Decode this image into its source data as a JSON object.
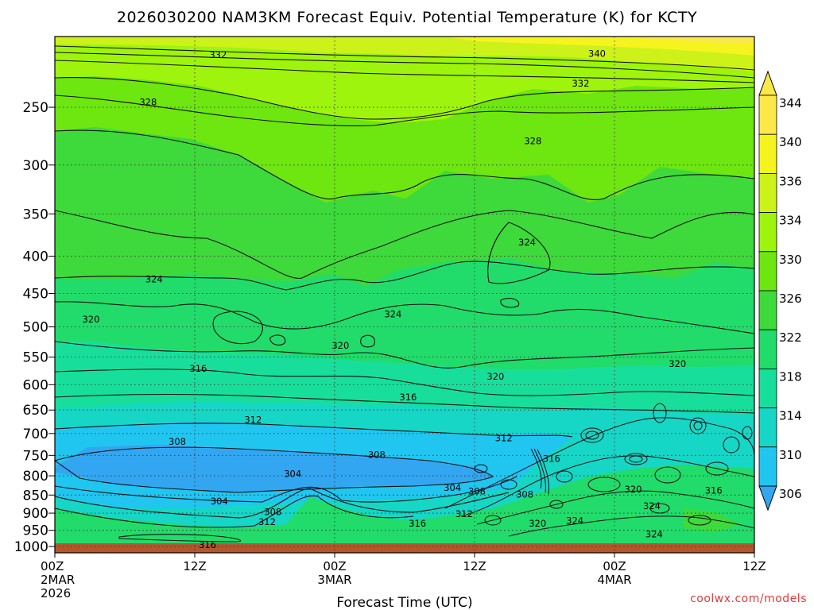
{
  "chart_data": {
    "type": "heatmap",
    "title": "2026030200 NAM3KM Forecast Equiv. Potential Temperature (K) for KCTY",
    "xlabel": "Forecast Time (UTC)",
    "ylabel": "",
    "x_ticks": [
      {
        "hour": 0,
        "lines": [
          "00Z",
          "2MAR",
          "2026"
        ]
      },
      {
        "hour": 12,
        "lines": [
          "12Z"
        ]
      },
      {
        "hour": 24,
        "lines": [
          "00Z",
          "3MAR"
        ]
      },
      {
        "hour": 36,
        "lines": [
          "12Z"
        ]
      },
      {
        "hour": 48,
        "lines": [
          "00Z",
          "4MAR"
        ]
      },
      {
        "hour": 60,
        "lines": [
          "12Z"
        ]
      }
    ],
    "xlim": [
      0,
      60
    ],
    "ylim": [
      1020,
      200
    ],
    "y_ticks": [
      250,
      300,
      350,
      400,
      450,
      500,
      550,
      600,
      650,
      700,
      750,
      800,
      850,
      900,
      950,
      1000
    ],
    "y_scale": "log-pressure",
    "grid": true,
    "colorbar": {
      "ticks": [
        344,
        340,
        336,
        334,
        330,
        326,
        322,
        318,
        314,
        310,
        306
      ],
      "colors": [
        "#fde84a",
        "#f6f41e",
        "#cdf21a",
        "#9ef40c",
        "#6ee610",
        "#3ed93a",
        "#21dc6a",
        "#18de9c",
        "#16d6c6",
        "#20c6f0",
        "#33a6f1"
      ]
    },
    "surface_color": "#b5552c",
    "contour_labels": [
      {
        "text": "332",
        "hour": 14,
        "p": 212
      },
      {
        "text": "340",
        "hour": 46.5,
        "p": 211
      },
      {
        "text": "332",
        "hour": 45.1,
        "p": 232
      },
      {
        "text": "328",
        "hour": 8,
        "p": 246
      },
      {
        "text": "328",
        "hour": 41,
        "p": 278
      },
      {
        "text": "324",
        "hour": 40.5,
        "p": 383
      },
      {
        "text": "324",
        "hour": 8.5,
        "p": 430
      },
      {
        "text": "324",
        "hour": 29,
        "p": 480
      },
      {
        "text": "320",
        "hour": 3.1,
        "p": 488
      },
      {
        "text": "320",
        "hour": 24.5,
        "p": 530
      },
      {
        "text": "320",
        "hour": 37.8,
        "p": 585
      },
      {
        "text": "320",
        "hour": 53.4,
        "p": 562
      },
      {
        "text": "316",
        "hour": 12.3,
        "p": 570
      },
      {
        "text": "316",
        "hour": 30.3,
        "p": 624
      },
      {
        "text": "312",
        "hour": 17,
        "p": 670
      },
      {
        "text": "312",
        "hour": 38.5,
        "p": 710
      },
      {
        "text": "308",
        "hour": 10.5,
        "p": 718
      },
      {
        "text": "308",
        "hour": 27.6,
        "p": 748
      },
      {
        "text": "316",
        "hour": 42.6,
        "p": 758
      },
      {
        "text": "304",
        "hour": 20.4,
        "p": 795
      },
      {
        "text": "304",
        "hour": 34.1,
        "p": 830
      },
      {
        "text": "308",
        "hour": 36.2,
        "p": 840
      },
      {
        "text": "308",
        "hour": 40.3,
        "p": 848
      },
      {
        "text": "320",
        "hour": 49.6,
        "p": 835
      },
      {
        "text": "316",
        "hour": 56.5,
        "p": 838
      },
      {
        "text": "304",
        "hour": 14.1,
        "p": 867
      },
      {
        "text": "324",
        "hour": 51.2,
        "p": 880
      },
      {
        "text": "308",
        "hour": 18.7,
        "p": 897
      },
      {
        "text": "312",
        "hour": 35.1,
        "p": 902
      },
      {
        "text": "312",
        "hour": 18.2,
        "p": 925
      },
      {
        "text": "316",
        "hour": 31.1,
        "p": 930
      },
      {
        "text": "320",
        "hour": 41.4,
        "p": 930
      },
      {
        "text": "324",
        "hour": 44.6,
        "p": 922
      },
      {
        "text": "324",
        "hour": 51.4,
        "p": 962
      },
      {
        "text": "316",
        "hour": 13.1,
        "p": 995
      }
    ]
  },
  "credit": "coolwx.com/models"
}
